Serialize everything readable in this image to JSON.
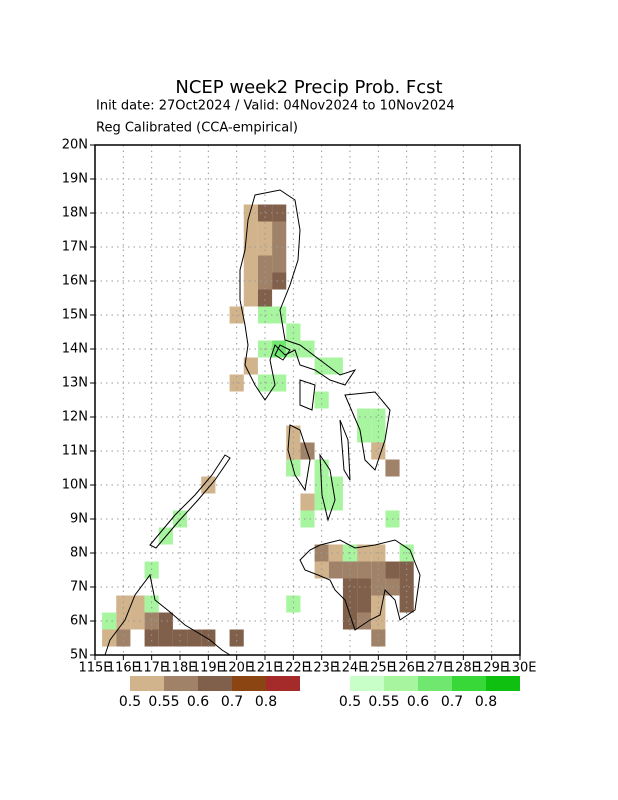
{
  "title": "NCEP week2 Precip Prob. Fcst",
  "init_line": "Init date: 27Oct2024 / Valid: 04Nov2024 to 10Nov2024",
  "method": "Reg Calibrated (CCA-empirical)",
  "map": {
    "lon_range": [
      115,
      130
    ],
    "lat_range": [
      5,
      20
    ],
    "lat_ticks": [
      {
        "value": 5,
        "label": "5N"
      },
      {
        "value": 6,
        "label": "6N"
      },
      {
        "value": 7,
        "label": "7N"
      },
      {
        "value": 8,
        "label": "8N"
      },
      {
        "value": 9,
        "label": "9N"
      },
      {
        "value": 10,
        "label": "10N"
      },
      {
        "value": 11,
        "label": "11N"
      },
      {
        "value": 12,
        "label": "12N"
      },
      {
        "value": 13,
        "label": "13N"
      },
      {
        "value": 14,
        "label": "14N"
      },
      {
        "value": 15,
        "label": "15N"
      },
      {
        "value": 16,
        "label": "16N"
      },
      {
        "value": 17,
        "label": "17N"
      },
      {
        "value": 18,
        "label": "18N"
      },
      {
        "value": 19,
        "label": "19N"
      },
      {
        "value": 20,
        "label": "20N"
      }
    ],
    "lon_ticks": [
      {
        "value": 115,
        "label": "115E"
      },
      {
        "value": 116,
        "label": "116E"
      },
      {
        "value": 117,
        "label": "117E"
      },
      {
        "value": 118,
        "label": "118E"
      },
      {
        "value": 119,
        "label": "119E"
      },
      {
        "value": 120,
        "label": "120E"
      },
      {
        "value": 121,
        "label": "121E"
      },
      {
        "value": 122,
        "label": "122E"
      },
      {
        "value": 123,
        "label": "123E"
      },
      {
        "value": 124,
        "label": "124E"
      },
      {
        "value": 125,
        "label": "125E"
      },
      {
        "value": 126,
        "label": "126E"
      },
      {
        "value": 127,
        "label": "127E"
      },
      {
        "value": 128,
        "label": "128E"
      },
      {
        "value": 129,
        "label": "129E"
      },
      {
        "value": 130,
        "label": "130E"
      }
    ],
    "dry_cells": [
      [
        120.5,
        18,
        0.5
      ],
      [
        121,
        18,
        0.6
      ],
      [
        121.5,
        18,
        0.6
      ],
      [
        120.5,
        17.5,
        0.5
      ],
      [
        121,
        17.5,
        0.5
      ],
      [
        121.5,
        17.5,
        0.55
      ],
      [
        120.5,
        17,
        0.5
      ],
      [
        121,
        17,
        0.5
      ],
      [
        121.5,
        17,
        0.55
      ],
      [
        120.5,
        16.5,
        0.5
      ],
      [
        121,
        16.5,
        0.55
      ],
      [
        121.5,
        16.5,
        0.55
      ],
      [
        120.5,
        16,
        0.5
      ],
      [
        121,
        16,
        0.55
      ],
      [
        121.5,
        16,
        0.6
      ],
      [
        120.5,
        15.5,
        0.5
      ],
      [
        121,
        15.5,
        0.6
      ],
      [
        120,
        15,
        0.5
      ],
      [
        120.5,
        13.5,
        0.5
      ],
      [
        120,
        13,
        0.5
      ],
      [
        122,
        11.5,
        0.5
      ],
      [
        122,
        11,
        0.5
      ],
      [
        122.5,
        11,
        0.55
      ],
      [
        122,
        10.5,
        0.5
      ],
      [
        122.5,
        9.5,
        0.5
      ],
      [
        119,
        10,
        0.5
      ],
      [
        125,
        11,
        0.5
      ],
      [
        125.5,
        10.5,
        0.55
      ],
      [
        123,
        8,
        0.55
      ],
      [
        123.5,
        8,
        0.5
      ],
      [
        124.5,
        8,
        0.5
      ],
      [
        125,
        8,
        0.5
      ],
      [
        123,
        7.5,
        0.5
      ],
      [
        123.5,
        7.5,
        0.55
      ],
      [
        124,
        7.5,
        0.55
      ],
      [
        124.5,
        7.5,
        0.55
      ],
      [
        125,
        7.5,
        0.55
      ],
      [
        125.5,
        7.5,
        0.6
      ],
      [
        126,
        7.5,
        0.6
      ],
      [
        124,
        7,
        0.6
      ],
      [
        124.5,
        7,
        0.6
      ],
      [
        125,
        7,
        0.55
      ],
      [
        125.5,
        7,
        0.55
      ],
      [
        126,
        7,
        0.6
      ],
      [
        124,
        6.5,
        0.6
      ],
      [
        124.5,
        6.5,
        0.6
      ],
      [
        125,
        6.5,
        0.5
      ],
      [
        126,
        6.5,
        0.6
      ],
      [
        124,
        6,
        0.6
      ],
      [
        124.5,
        6,
        0.55
      ],
      [
        125,
        6,
        0.5
      ],
      [
        125,
        5.5,
        0.55
      ],
      [
        115.5,
        5.5,
        0.5
      ],
      [
        116,
        5.5,
        0.55
      ],
      [
        116,
        6,
        0.5
      ],
      [
        116.5,
        6,
        0.5
      ],
      [
        116,
        6.5,
        0.5
      ],
      [
        116.5,
        6.5,
        0.5
      ],
      [
        117,
        6,
        0.55
      ],
      [
        117,
        5.5,
        0.6
      ],
      [
        117.5,
        5.5,
        0.6
      ],
      [
        118,
        5.5,
        0.6
      ],
      [
        117.5,
        6,
        0.6
      ],
      [
        118.5,
        5.5,
        0.6
      ],
      [
        119,
        5.5,
        0.6
      ],
      [
        120,
        5.5,
        0.6
      ]
    ],
    "wet_cells": [
      [
        121,
        15,
        0.55
      ],
      [
        121.5,
        15,
        0.55
      ],
      [
        122,
        14.5,
        0.55
      ],
      [
        121,
        14,
        0.55
      ],
      [
        121.5,
        14,
        0.6
      ],
      [
        122,
        14,
        0.55
      ],
      [
        122.5,
        14,
        0.55
      ],
      [
        123,
        13.5,
        0.55
      ],
      [
        123.5,
        13.5,
        0.55
      ],
      [
        121,
        13,
        0.55
      ],
      [
        121.5,
        13,
        0.55
      ],
      [
        123,
        12.5,
        0.55
      ],
      [
        124.5,
        12,
        0.55
      ],
      [
        125,
        12,
        0.55
      ],
      [
        124.5,
        11.5,
        0.55
      ],
      [
        125,
        11.5,
        0.55
      ],
      [
        122,
        10.5,
        0.55
      ],
      [
        123,
        10.5,
        0.55
      ],
      [
        123,
        10,
        0.55
      ],
      [
        123.5,
        10,
        0.55
      ],
      [
        123,
        9.5,
        0.55
      ],
      [
        123.5,
        9.5,
        0.55
      ],
      [
        122.5,
        9,
        0.55
      ],
      [
        125.5,
        9,
        0.55
      ],
      [
        126,
        8,
        0.55
      ],
      [
        124,
        8,
        0.55
      ],
      [
        122,
        6.5,
        0.55
      ],
      [
        118,
        9,
        0.55
      ],
      [
        117.5,
        8.5,
        0.55
      ],
      [
        117,
        7.5,
        0.55
      ],
      [
        117,
        6.5,
        0.55
      ],
      [
        115.5,
        6,
        0.55
      ]
    ]
  },
  "legend": {
    "dry": {
      "levels": [
        0.5,
        0.55,
        0.6,
        0.7,
        0.8
      ],
      "colors": [
        "#d2b48c",
        "#a08268",
        "#80604a",
        "#8b4513",
        "#a52a2a"
      ]
    },
    "wet": {
      "levels": [
        0.5,
        0.55,
        0.6,
        0.7,
        0.8
      ],
      "colors": [
        "#c8ffc8",
        "#a8f5a0",
        "#70e870",
        "#38d838",
        "#10c010"
      ]
    }
  }
}
